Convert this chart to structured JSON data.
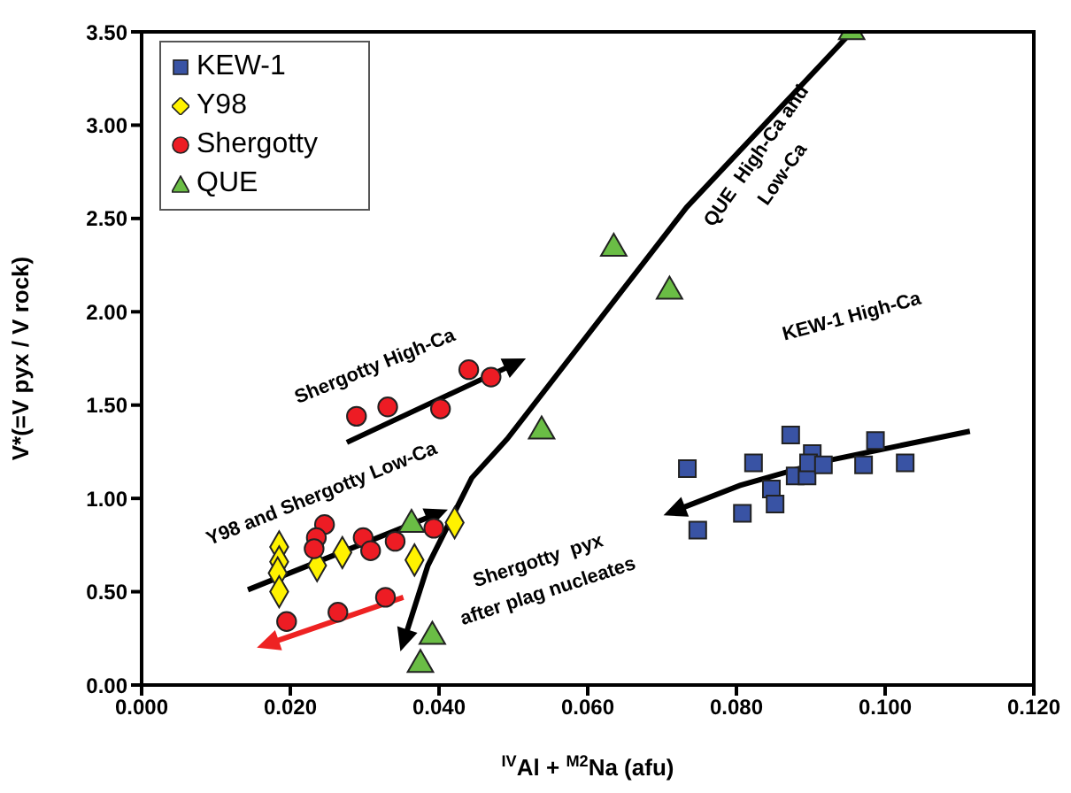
{
  "chart_data": {
    "type": "scatter",
    "xlabel": "$^{IV}$Al + $^{M2}$Na (afu)",
    "ylabel": "V*(=V pyx / V rock)",
    "xlim": [
      0,
      0.12
    ],
    "xticks": [
      {
        "value": 0,
        "label": "0.000"
      },
      {
        "value": 0.02,
        "label": "0.020"
      },
      {
        "value": 0.04,
        "label": "0.040"
      },
      {
        "value": 0.06,
        "label": "0.060"
      },
      {
        "value": 0.08,
        "label": "0.080"
      },
      {
        "value": 0.1,
        "label": "0.100"
      },
      {
        "value": 0.12,
        "label": "0.120"
      }
    ],
    "ylim": [
      0,
      3.5
    ],
    "yticks": [
      {
        "value": 0,
        "label": "0.00"
      },
      {
        "value": 0.5,
        "label": "0.50"
      },
      {
        "value": 1,
        "label": "1.00"
      },
      {
        "value": 1.5,
        "label": "1.50"
      },
      {
        "value": 2,
        "label": "2.00"
      },
      {
        "value": 2.5,
        "label": "2.50"
      },
      {
        "value": 3,
        "label": "3.00"
      },
      {
        "value": 3.5,
        "label": "3.50"
      }
    ],
    "grid": false,
    "legend": "top left",
    "series": [
      {
        "name": "KEW-1",
        "color": "#3953a4",
        "marker": "square",
        "x": [
          0.0734,
          0.0873,
          0.0823,
          0.0748,
          0.0808,
          0.0847,
          0.0852,
          0.0879,
          0.0895,
          0.0902,
          0.0897,
          0.0917,
          0.0971,
          0.0987,
          0.1027
        ],
        "values": [
          1.16,
          1.34,
          1.19,
          0.83,
          0.92,
          1.05,
          0.97,
          1.12,
          1.12,
          1.24,
          1.19,
          1.18,
          1.18,
          1.31,
          1.19
        ]
      },
      {
        "name": "Y98",
        "color": "#fff200",
        "marker": "diamond",
        "x": [
          0.0185,
          0.0185,
          0.0183,
          0.0185,
          0.0236,
          0.027,
          0.0367,
          0.0421
        ],
        "values": [
          0.74,
          0.66,
          0.6,
          0.5,
          0.64,
          0.71,
          0.67,
          0.87
        ]
      },
      {
        "name": "Shergotty",
        "color": "#ed1c24",
        "marker": "circle",
        "x": [
          0.0289,
          0.0331,
          0.0402,
          0.044,
          0.047,
          0.0246,
          0.0235,
          0.0232,
          0.0298,
          0.0308,
          0.0341,
          0.0393,
          0.0195,
          0.0264,
          0.0328
        ],
        "values": [
          1.44,
          1.49,
          1.48,
          1.69,
          1.65,
          0.86,
          0.79,
          0.73,
          0.79,
          0.72,
          0.77,
          0.84,
          0.34,
          0.39,
          0.47
        ]
      },
      {
        "name": "QUE",
        "color": "#6abd45",
        "marker": "triangle",
        "x": [
          0.0955,
          0.0635,
          0.071,
          0.0538,
          0.0363,
          0.0391,
          0.0375
        ],
        "values": [
          3.5,
          2.34,
          2.11,
          1.36,
          0.86,
          0.26,
          0.11
        ]
      }
    ],
    "annotations": [
      "Shergotty High-Ca",
      "Y98 and Shergotty Low-Ca",
      "QUE  High-Ca and\nLow-Ca",
      "KEW-1 High-Ca",
      "Shergotty  pyx\nafter plag nucleates"
    ]
  }
}
